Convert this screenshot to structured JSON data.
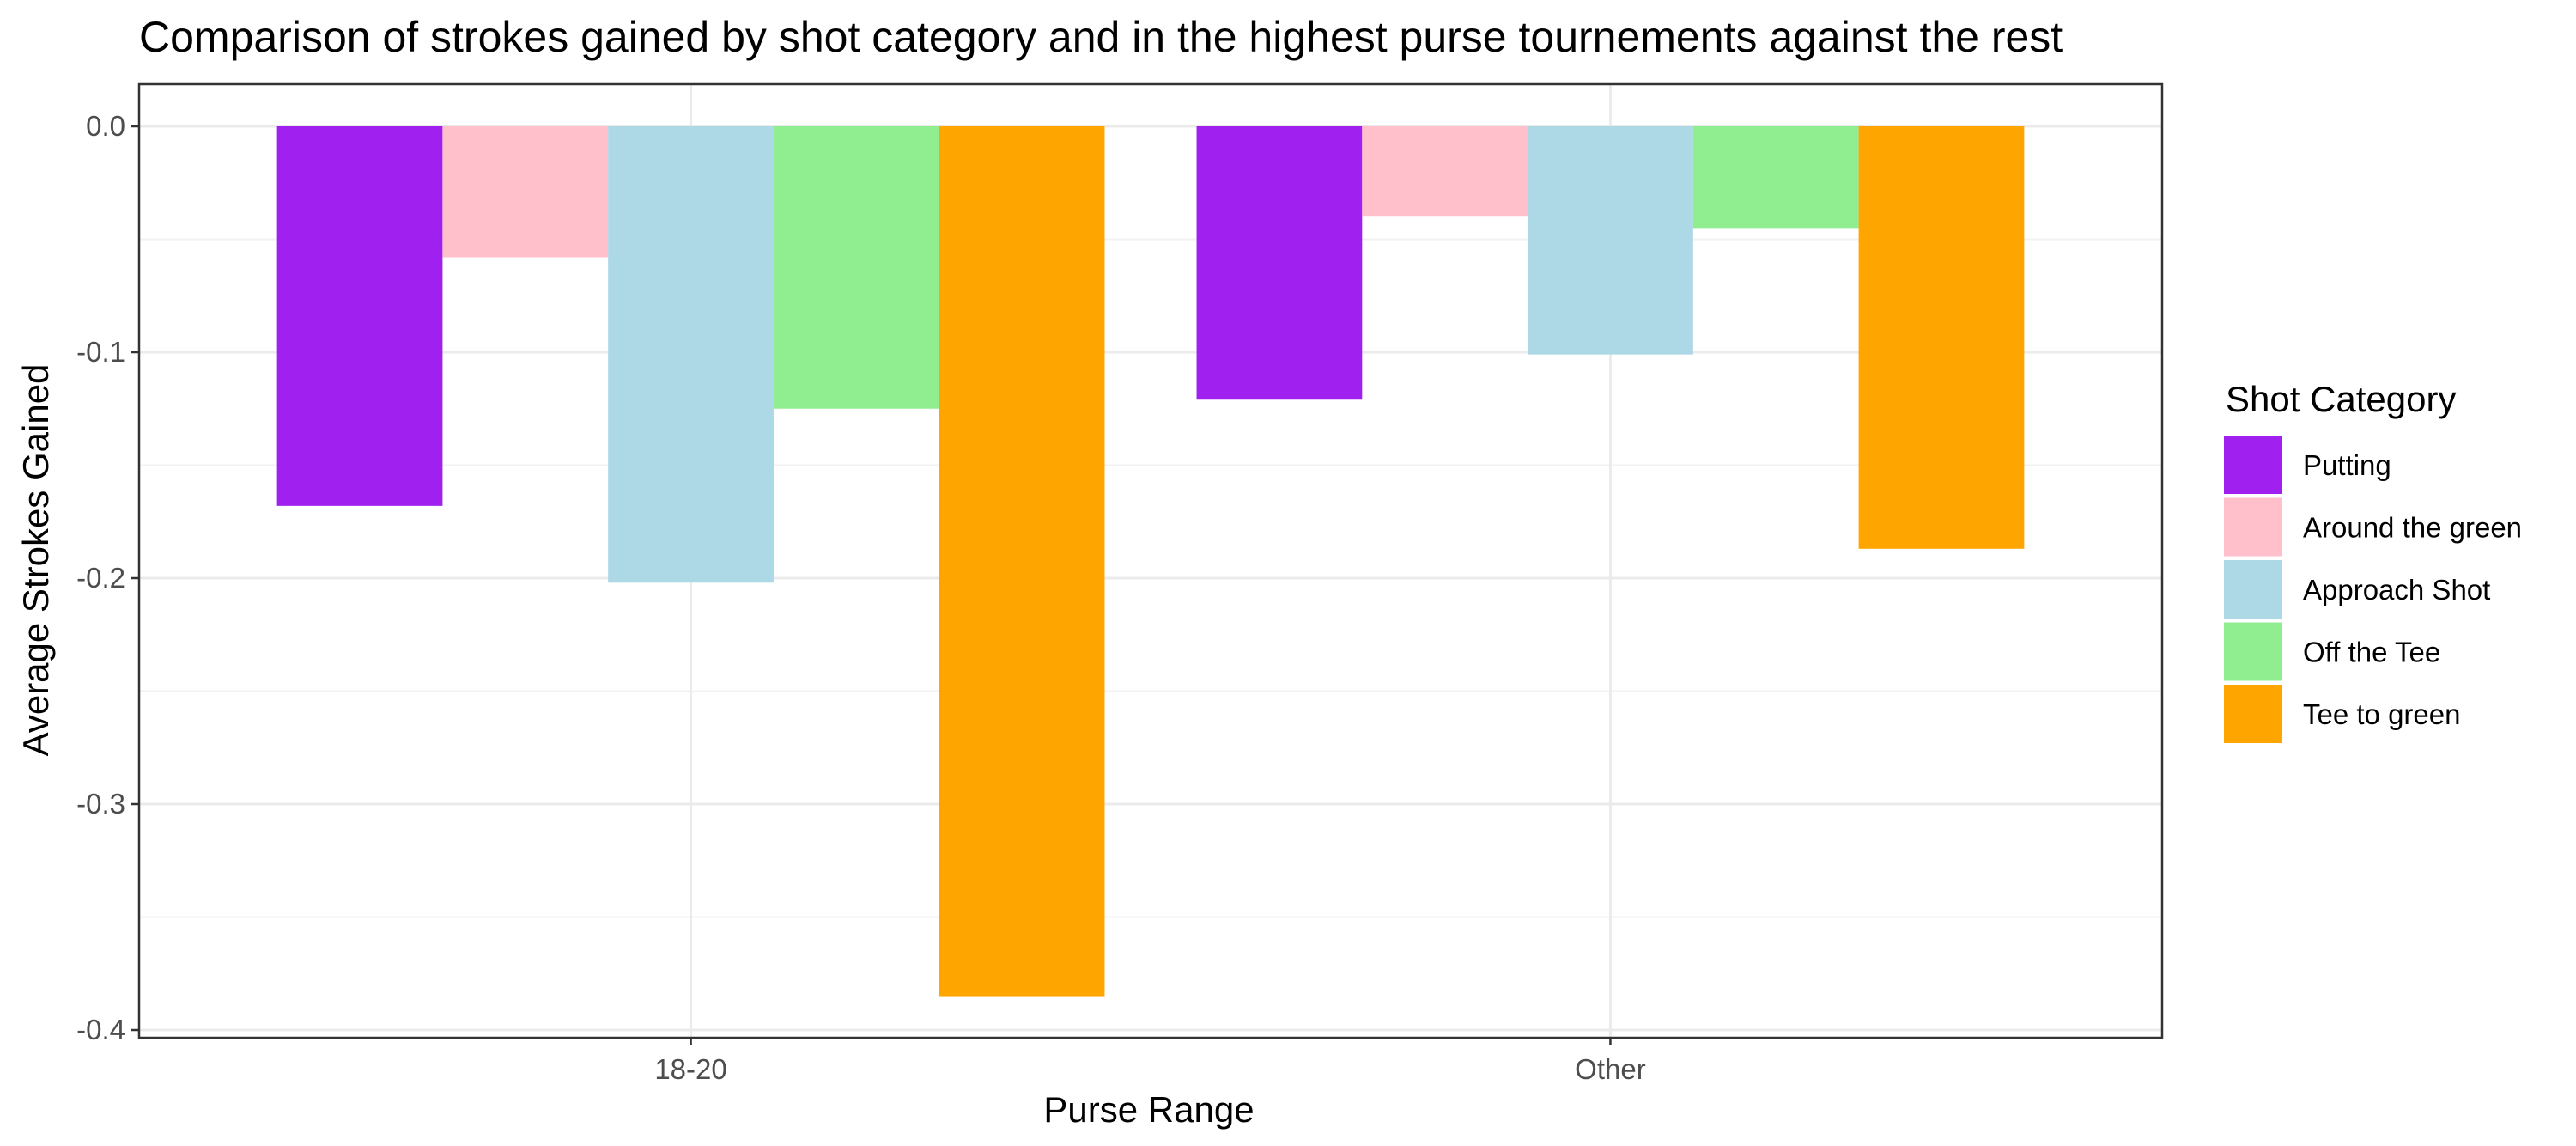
{
  "chart_data": {
    "type": "bar",
    "title": "Comparison of strokes gained by shot category and in the highest purse tournements against the rest",
    "xlabel": "Purse Range",
    "ylabel": "Average Strokes Gained",
    "categories": [
      "18-20",
      "Other"
    ],
    "series": [
      {
        "name": "Putting",
        "color": "#a020f0",
        "values": [
          -0.168,
          -0.121
        ]
      },
      {
        "name": "Around the green",
        "color": "#ffc0cb",
        "values": [
          -0.058,
          -0.04
        ]
      },
      {
        "name": "Approach Shot",
        "color": "#add8e6",
        "values": [
          -0.202,
          -0.101
        ]
      },
      {
        "name": "Off the Tee",
        "color": "#90ee90",
        "values": [
          -0.125,
          -0.045
        ]
      },
      {
        "name": "Tee to green",
        "color": "#ffa500",
        "values": [
          -0.385,
          -0.187
        ]
      }
    ],
    "ylim": [
      -0.4,
      0.0
    ],
    "yticks": [
      "0.0",
      "-0.1",
      "-0.2",
      "-0.3",
      "-0.4"
    ],
    "ytick_values": [
      0.0,
      -0.1,
      -0.2,
      -0.3,
      -0.4
    ],
    "grid": true,
    "legend": {
      "title": "Shot Category",
      "position": "right"
    }
  }
}
